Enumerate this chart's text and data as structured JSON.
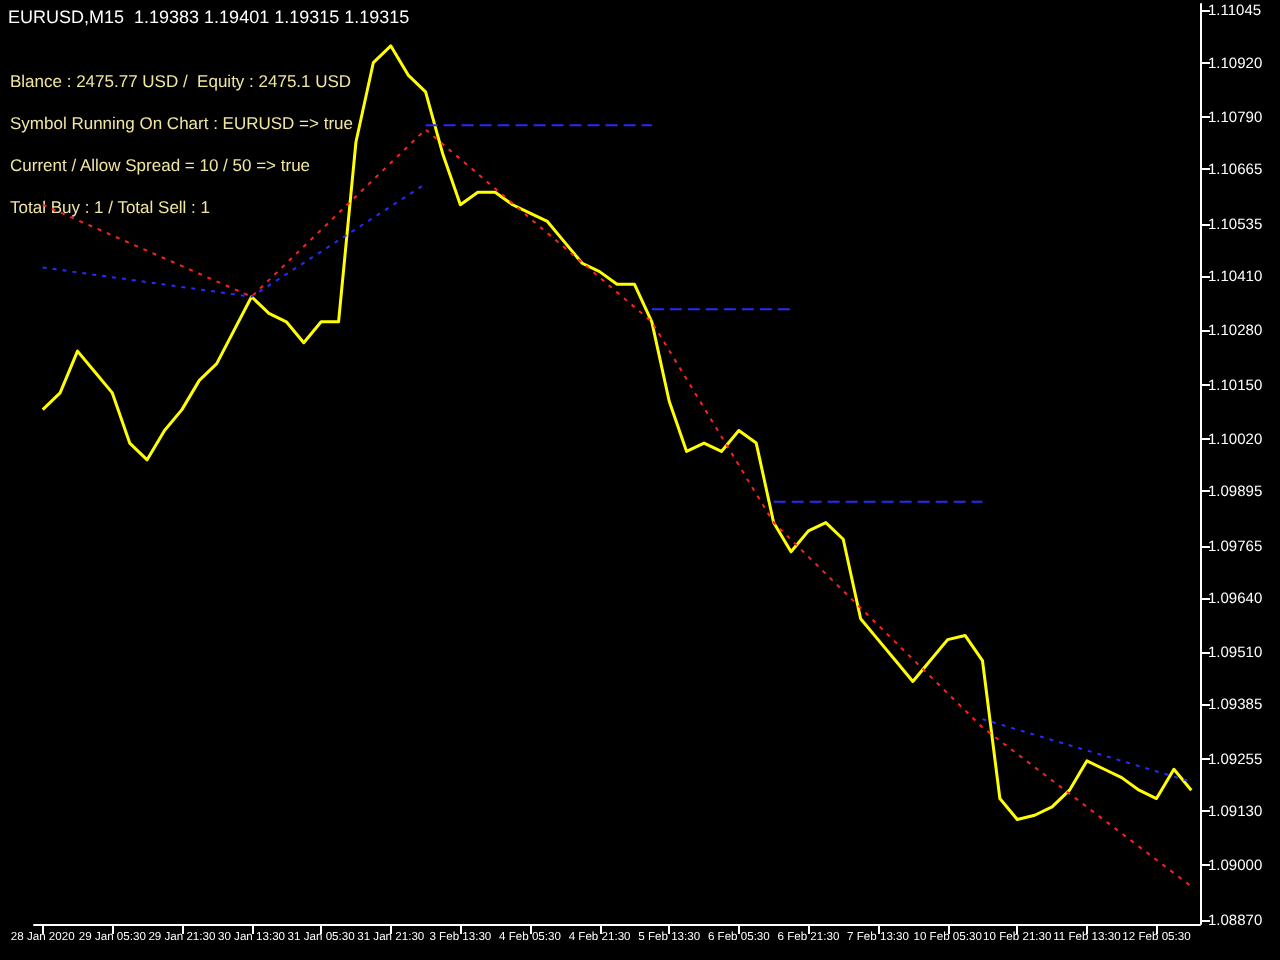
{
  "chart_data": {
    "type": "line",
    "title": "EURUSD,M15  1.19383 1.19401 1.19315 1.19315",
    "annotations": [
      "Blance : 2475.77 USD /  Equity : 2475.1 USD",
      "Symbol Running On Chart : EURUSD => true",
      "Current / Allow Spread = 10 / 50 => true",
      "Total Buy : 1 / Total Sell : 1"
    ],
    "categories": [
      "28 Jan 2020",
      null,
      null,
      null,
      "29 Jan 05:30",
      null,
      null,
      null,
      "29 Jan 21:30",
      null,
      null,
      null,
      "30 Jan 13:30",
      null,
      null,
      null,
      "31 Jan 05:30",
      null,
      null,
      null,
      "31 Jan 21:30",
      null,
      null,
      null,
      "3 Feb 13:30",
      null,
      null,
      null,
      "4 Feb 05:30",
      null,
      null,
      null,
      "4 Feb 21:30",
      null,
      null,
      null,
      "5 Feb 13:30",
      null,
      null,
      null,
      "6 Feb 05:30",
      null,
      null,
      null,
      "6 Feb 21:30",
      null,
      null,
      null,
      "7 Feb 13:30",
      null,
      null,
      null,
      "10 Feb 05:30",
      null,
      null,
      null,
      "10 Feb 21:30",
      null,
      null,
      null,
      "11 Feb 13:30",
      null,
      null,
      null,
      "12 Feb 05:30",
      null,
      null
    ],
    "series": [
      {
        "color": "#ffff00",
        "line_style": "solid",
        "values": [
          1.1009,
          1.1013,
          1.1023,
          1.1018,
          1.1013,
          1.1001,
          1.0997,
          1.1004,
          1.1009,
          1.1016,
          1.102,
          1.1028,
          1.1036,
          1.1032,
          1.103,
          1.1025,
          1.103,
          1.103,
          1.1073,
          1.1092,
          1.1096,
          1.1089,
          1.1085,
          1.107,
          1.1058,
          1.1061,
          1.1061,
          1.1058,
          1.1056,
          1.1054,
          1.1049,
          1.1044,
          1.1042,
          1.1039,
          1.1039,
          1.103,
          1.1011,
          1.0999,
          1.1001,
          1.0999,
          1.1004,
          1.1001,
          1.0982,
          1.0975,
          1.098,
          1.0982,
          1.0978,
          1.0959,
          1.0954,
          1.0949,
          1.0944,
          1.0949,
          1.0954,
          1.0955,
          1.0949,
          1.0916,
          1.0911,
          1.0912,
          1.0914,
          1.0918,
          1.0925,
          1.0923,
          1.0921,
          1.0918,
          1.0916,
          1.0923,
          1.0918
        ]
      },
      {
        "color": "#ff2020",
        "line_style": "dotted",
        "values": [
          1.1058,
          null,
          null,
          null,
          null,
          null,
          null,
          null,
          null,
          null,
          null,
          null,
          1.1036,
          null,
          null,
          null,
          null,
          null,
          null,
          null,
          null,
          null,
          1.1076,
          null,
          null,
          null,
          null,
          null,
          null,
          null,
          null,
          null,
          null,
          null,
          null,
          1.103,
          null,
          null,
          null,
          null,
          null,
          null,
          1.0982,
          null,
          null,
          null,
          null,
          null,
          null,
          null,
          null,
          null,
          null,
          null,
          1.0933,
          null,
          null,
          null,
          null,
          null,
          null,
          null,
          null,
          null,
          null,
          null,
          1.0895
        ]
      },
      {
        "color": "#2a2aff",
        "line_style": "dotted",
        "values": [
          1.1043,
          null,
          null,
          null,
          null,
          null,
          null,
          null,
          null,
          null,
          null,
          null,
          1.1036,
          null,
          null,
          null,
          null,
          null,
          null,
          null,
          null,
          null,
          1.1063,
          null,
          null,
          null,
          null,
          null,
          null,
          null,
          null,
          null,
          null,
          null,
          null,
          null,
          null,
          null,
          null,
          null,
          null,
          null,
          null,
          null,
          null,
          null,
          null,
          null,
          null,
          null,
          null,
          null,
          null,
          null,
          null,
          null,
          null,
          null,
          null,
          null,
          null,
          null,
          null,
          null,
          null,
          null,
          null
        ]
      },
      {
        "color": "#2a2aff",
        "line_style": "dotted",
        "values": [
          null,
          null,
          null,
          null,
          null,
          null,
          null,
          null,
          null,
          null,
          null,
          null,
          null,
          null,
          null,
          null,
          null,
          null,
          null,
          null,
          null,
          null,
          null,
          null,
          null,
          null,
          null,
          null,
          null,
          null,
          null,
          null,
          null,
          null,
          null,
          null,
          null,
          null,
          null,
          null,
          null,
          null,
          null,
          null,
          null,
          null,
          null,
          null,
          null,
          null,
          null,
          null,
          null,
          null,
          1.0935,
          null,
          null,
          null,
          null,
          null,
          null,
          null,
          null,
          null,
          null,
          null,
          1.092
        ]
      },
      {
        "color": "#2a2aff",
        "line_style": "dashed",
        "values": [
          null,
          null,
          null,
          null,
          null,
          null,
          null,
          null,
          null,
          null,
          null,
          null,
          null,
          null,
          null,
          null,
          null,
          null,
          null,
          null,
          null,
          null,
          1.1077,
          null,
          null,
          null,
          null,
          null,
          null,
          null,
          null,
          null,
          null,
          null,
          null,
          1.1077,
          null,
          null,
          null,
          null,
          null,
          null,
          null,
          null,
          null,
          null,
          null,
          null,
          null,
          null,
          null,
          null,
          null,
          null,
          null,
          null,
          null,
          null,
          null,
          null,
          null,
          null,
          null,
          null,
          null,
          null,
          null
        ]
      },
      {
        "color": "#2a2aff",
        "line_style": "dashed",
        "values": [
          null,
          null,
          null,
          null,
          null,
          null,
          null,
          null,
          null,
          null,
          null,
          null,
          null,
          null,
          null,
          null,
          null,
          null,
          null,
          null,
          null,
          null,
          null,
          null,
          null,
          null,
          null,
          null,
          null,
          null,
          null,
          null,
          null,
          null,
          null,
          1.1033,
          null,
          null,
          null,
          null,
          null,
          null,
          null,
          1.1033,
          null,
          null,
          null,
          null,
          null,
          null,
          null,
          null,
          null,
          null,
          null,
          null,
          null,
          null,
          null,
          null,
          null,
          null,
          null,
          null,
          null,
          null,
          null
        ]
      },
      {
        "color": "#2a2aff",
        "line_style": "dashed",
        "values": [
          null,
          null,
          null,
          null,
          null,
          null,
          null,
          null,
          null,
          null,
          null,
          null,
          null,
          null,
          null,
          null,
          null,
          null,
          null,
          null,
          null,
          null,
          null,
          null,
          null,
          null,
          null,
          null,
          null,
          null,
          null,
          null,
          null,
          null,
          null,
          null,
          null,
          null,
          null,
          null,
          null,
          null,
          1.0987,
          null,
          null,
          null,
          null,
          null,
          null,
          null,
          null,
          null,
          null,
          null,
          1.0987,
          null,
          null,
          null,
          null,
          null,
          null,
          null,
          null,
          null,
          null,
          null,
          null
        ]
      }
    ],
    "ylim": [
      1.0886,
      1.1106
    ],
    "yticks": [
      1.11045,
      {
        "value": 1.1092,
        "label": "1.10920"
      },
      {
        "value": 1.1079,
        "label": "1.10790"
      },
      1.10665,
      1.10535,
      {
        "value": 1.1041,
        "label": "1.10410"
      },
      {
        "value": 1.1028,
        "label": "1.10280"
      },
      {
        "value": 1.1015,
        "label": "1.10150"
      },
      {
        "value": 1.1002,
        "label": "1.10020"
      },
      1.09895,
      1.09765,
      {
        "value": 1.0964,
        "label": "1.09640"
      },
      {
        "value": 1.0951,
        "label": "1.09510"
      },
      1.09385,
      1.09255,
      {
        "value": 1.0913,
        "label": "1.09130"
      },
      {
        "value": 1.09,
        "label": "1.09000"
      },
      {
        "value": 1.0887,
        "label": "1.08870"
      }
    ],
    "grid": false,
    "marker": "none"
  }
}
